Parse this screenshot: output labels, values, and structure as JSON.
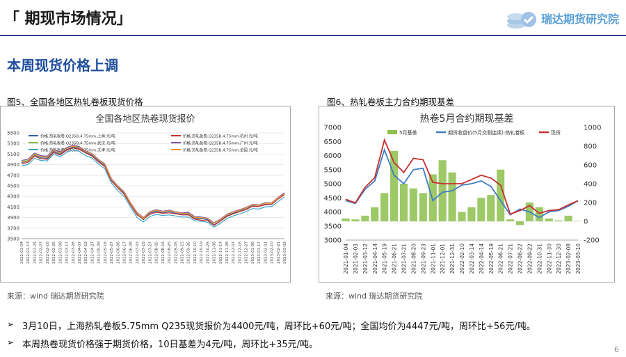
{
  "header": {
    "title": "「 期现市场情况」",
    "brand": "瑞达期货研究院"
  },
  "section": {
    "title": "本周现货价格上调"
  },
  "figures": [
    {
      "caption": "图5、全国各地区热轧卷板现货价格",
      "source": "来源：wind   瑞达期货研究院"
    },
    {
      "caption": "图6、热轧卷板主力合约期现基差",
      "source": "来源：wind   瑞达期货研究院"
    }
  ],
  "bullets": [
    "3月10日，上海热轧卷板5.75mm Q235现货报价为4400元/吨，周环比+60元/吨；全国均价为4447元/吨，周环比+56元/吨。",
    "本周热卷现货价格强于期货价格，10日基差为4元/吨，周环比+35元/吨。"
  ],
  "page_number": "6",
  "colors": {
    "accent": "#1f4e9c",
    "header_line": "#2b3f8c",
    "brand": "#5a9fd6"
  },
  "chart_data": [
    {
      "type": "line",
      "title": "全国各地区热卷现货报价",
      "ylim": [
        3500,
        5500
      ],
      "yticks": [
        3500,
        3700,
        3900,
        4100,
        4300,
        4500,
        4700,
        4900,
        5100,
        5300,
        5500
      ],
      "x": [
        "2022-01-04",
        "2022-01-13",
        "2022-01-24",
        "2022-02-07",
        "2022-02-16",
        "2022-02-25",
        "2022-03-08",
        "2022-03-17",
        "2022-03-28",
        "2022-04-07",
        "2022-04-18",
        "2022-04-27",
        "2022-05-09",
        "2022-05-18",
        "2022-05-27",
        "2022-06-08",
        "2022-06-17",
        "2022-06-28",
        "2022-07-07",
        "2022-07-18",
        "2022-07-27",
        "2022-08-05",
        "2022-08-16",
        "2022-08-25",
        "2022-09-05",
        "2022-09-15",
        "2022-09-26",
        "2022-10-10",
        "2022-10-19",
        "2022-10-28",
        "2022-11-08",
        "2022-11-17",
        "2022-11-28",
        "2022-12-07",
        "2022-12-16",
        "2022-12-27",
        "2023-01-06",
        "2023-01-17",
        "2023-02-01",
        "2023-02-10",
        "2023-02-21",
        "2023-03-02"
      ],
      "legend": "top",
      "grid": true,
      "series": [
        {
          "name": "价格:热轧板卷:Q235B:4.75mm:上海 元/吨",
          "color": "#2f5fa8",
          "values": [
            4940,
            4960,
            5080,
            5030,
            5020,
            5150,
            5100,
            5180,
            5230,
            5210,
            5130,
            5080,
            4970,
            4880,
            4600,
            4470,
            4360,
            4150,
            3960,
            3860,
            3980,
            4020,
            3990,
            4010,
            3980,
            3960,
            3960,
            3880,
            3880,
            3860,
            3760,
            3840,
            3930,
            3980,
            4020,
            4060,
            4120,
            4110,
            4150,
            4150,
            4250,
            4340
          ]
        },
        {
          "name": "价格:热轧板卷:Q235B:4.75mm:杭州 元/吨",
          "color": "#c62f2f",
          "values": [
            4920,
            4940,
            5060,
            5010,
            5000,
            5130,
            5080,
            5170,
            5220,
            5190,
            5120,
            5060,
            4950,
            4860,
            4590,
            4460,
            4340,
            4140,
            3950,
            3870,
            3960,
            4000,
            3980,
            3990,
            3970,
            3950,
            3950,
            3870,
            3850,
            3840,
            3750,
            3830,
            3920,
            3970,
            4010,
            4050,
            4110,
            4110,
            4140,
            4150,
            4250,
            4330
          ]
        },
        {
          "name": "价格:热轧板卷:Q235B:4.75mm:武汉 元/吨",
          "color": "#8cbc4c",
          "values": [
            4960,
            4980,
            5100,
            5060,
            5050,
            5170,
            5120,
            5200,
            5250,
            5230,
            5150,
            5100,
            4990,
            4900,
            4630,
            4490,
            4380,
            4170,
            3990,
            3880,
            4000,
            4040,
            4010,
            4030,
            4000,
            3980,
            3990,
            3900,
            3900,
            3880,
            3790,
            3860,
            3950,
            4000,
            4040,
            4080,
            4140,
            4130,
            4170,
            4170,
            4270,
            4360
          ]
        },
        {
          "name": "价格:热轧板卷:Q235B:4.75mm:广州 元/吨",
          "color": "#7d53a6",
          "values": [
            4980,
            5000,
            5120,
            5070,
            5060,
            5190,
            5140,
            5220,
            5270,
            5240,
            5160,
            5110,
            5000,
            4910,
            4640,
            4500,
            4390,
            4180,
            4000,
            3900,
            4010,
            4050,
            4020,
            4040,
            4010,
            3990,
            4000,
            3920,
            3910,
            3890,
            3800,
            3870,
            3960,
            4010,
            4050,
            4090,
            4150,
            4140,
            4180,
            4180,
            4280,
            4370
          ]
        },
        {
          "name": "价格:热轧板卷:Q235B:4.75mm:天津 元/吨",
          "color": "#3aa7c8",
          "values": [
            4880,
            4900,
            5020,
            4980,
            4970,
            5100,
            5050,
            5130,
            5180,
            5150,
            5070,
            5020,
            4910,
            4820,
            4550,
            4410,
            4300,
            4100,
            3900,
            3820,
            3920,
            3960,
            3940,
            3950,
            3930,
            3910,
            3910,
            3840,
            3830,
            3810,
            3720,
            3790,
            3880,
            3930,
            3970,
            4010,
            4070,
            4060,
            4100,
            4110,
            4200,
            4290
          ]
        },
        {
          "name": "价格:热轧板卷:Q235B:4.75mm:全国 元/吨",
          "color": "#f0962c",
          "values": [
            4950,
            4970,
            5090,
            5050,
            5040,
            5170,
            5120,
            5200,
            5250,
            5220,
            5150,
            5100,
            4990,
            4900,
            4630,
            4490,
            4380,
            4170,
            3990,
            3890,
            4000,
            4040,
            4010,
            4030,
            4000,
            3980,
            3980,
            3900,
            3900,
            3880,
            3790,
            3860,
            3950,
            4000,
            4040,
            4080,
            4140,
            4130,
            4170,
            4170,
            4270,
            4350
          ]
        }
      ]
    },
    {
      "type": "line",
      "title": "热卷5月合约期现基差",
      "ylim": [
        3000,
        7000
      ],
      "yticks": [
        3000,
        3500,
        4000,
        4500,
        5000,
        5500,
        6000,
        6500,
        7000
      ],
      "y2lim": [
        -200,
        1000
      ],
      "y2ticks": [
        -200,
        0,
        200,
        400,
        600,
        800,
        1000
      ],
      "x": [
        "2021-01-04",
        "2021-02-03",
        "2021-03-12",
        "2021-04-14",
        "2021-05-19",
        "2021-06-21",
        "2021-07-21",
        "2021-08-20",
        "2021-09-23",
        "2021-11-01",
        "2021-12-01",
        "2021-12-31",
        "2022-02-10",
        "2022-03-14",
        "2022-04-14",
        "2022-05-19",
        "2022-06-21",
        "2022-07-21",
        "2022-08-22",
        "2022-09-22",
        "2022-10-31",
        "2022-11-30",
        "2022-12-30",
        "2023-02-08",
        "2023-03-10"
      ],
      "legend": "top",
      "grid": false,
      "series": [
        {
          "name": "5月基差",
          "color": "#8cc04c",
          "axis": "right",
          "kind": "bar",
          "values": [
            30,
            20,
            60,
            150,
            300,
            750,
            400,
            350,
            300,
            500,
            650,
            520,
            100,
            150,
            250,
            280,
            550,
            20,
            -40,
            200,
            150,
            30,
            10,
            60,
            4
          ]
        },
        {
          "name": "期货收盘价(5月交割连续):热轧卷板",
          "color": "#3f7cc4",
          "axis": "left",
          "kind": "line",
          "values": [
            4400,
            4300,
            4800,
            5100,
            6200,
            5300,
            5000,
            5500,
            5550,
            4400,
            4700,
            4750,
            4950,
            5000,
            5100,
            4900,
            4400,
            3900,
            4100,
            4000,
            3800,
            4000,
            4050,
            4200,
            4396
          ]
        },
        {
          "name": "现货",
          "color": "#c62f2f",
          "axis": "left",
          "kind": "line",
          "values": [
            4450,
            4320,
            4870,
            5220,
            6550,
            5750,
            5400,
            5900,
            5850,
            5050,
            5000,
            5000,
            5000,
            5150,
            5300,
            5200,
            4950,
            3920,
            4050,
            4220,
            3950,
            4050,
            4080,
            4250,
            4400
          ]
        }
      ]
    }
  ]
}
